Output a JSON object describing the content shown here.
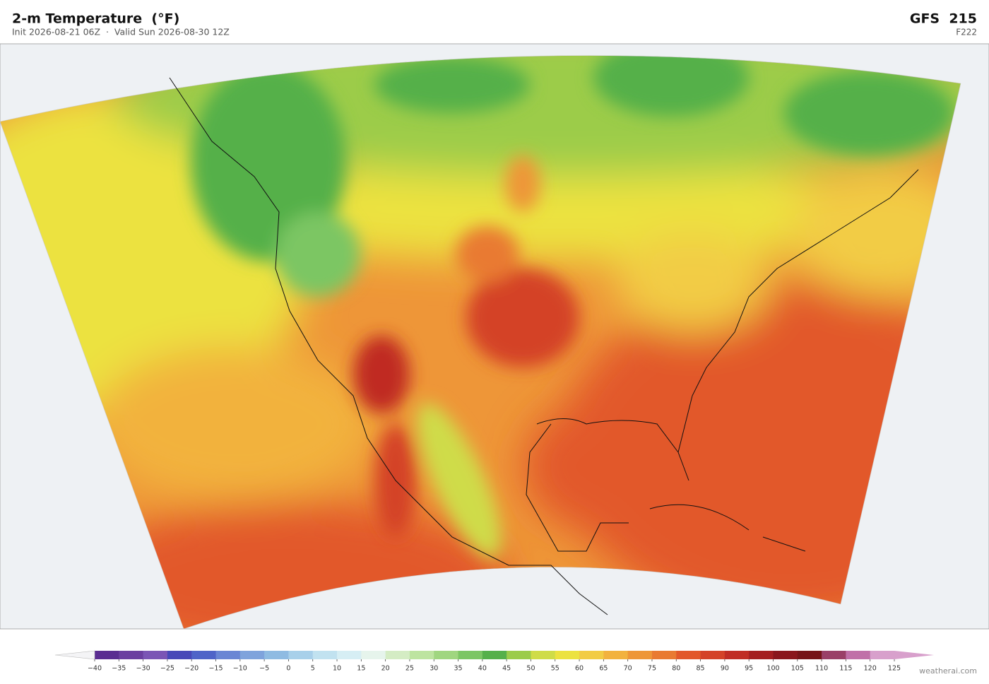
{
  "header": {
    "title": "2-m Temperature  (°F)",
    "subtitle": "Init 2026-08-21 06Z  ·  Valid Sun 2026-08-30 12Z",
    "model": "GFS  215",
    "forecast_hour": "F222"
  },
  "colorbar": {
    "ticks": [
      {
        "value": -40,
        "label": "−40"
      },
      {
        "value": -35,
        "label": "−35"
      },
      {
        "value": -30,
        "label": "−30"
      },
      {
        "value": -25,
        "label": "−25"
      },
      {
        "value": -20,
        "label": "−20"
      },
      {
        "value": -15,
        "label": "−15"
      },
      {
        "value": -10,
        "label": "−10"
      },
      {
        "value": -5,
        "label": "−5"
      },
      0,
      5,
      10,
      15,
      20,
      25,
      30,
      35,
      40,
      45,
      50,
      55,
      60,
      65,
      70,
      75,
      80,
      85,
      90,
      95,
      100,
      105,
      110,
      115,
      120,
      125
    ],
    "colors": [
      "#5a2d91",
      "#6b3fa0",
      "#7b55b5",
      "#4848b8",
      "#4f64c8",
      "#6a86d4",
      "#7fa3dc",
      "#8fbbe2",
      "#a8d0ea",
      "#c1e2f0",
      "#d6eef4",
      "#e6f4ec",
      "#d4ecc4",
      "#bde4a0",
      "#a0d680",
      "#7cc664",
      "#55b04a",
      "#9ccc4a",
      "#cfdc48",
      "#ece240",
      "#f2cc44",
      "#f2b23e",
      "#ee9638",
      "#e97a32",
      "#e2582a",
      "#d44228",
      "#c02c24",
      "#a41e20",
      "#8a161c",
      "#761418",
      "#9a4068",
      "#c070a8",
      "#d8a0cc"
    ],
    "under_color": "#f4f4f6",
    "over_color": "#d8a0cc"
  },
  "footer": {
    "credit": "weatherai.com"
  }
}
